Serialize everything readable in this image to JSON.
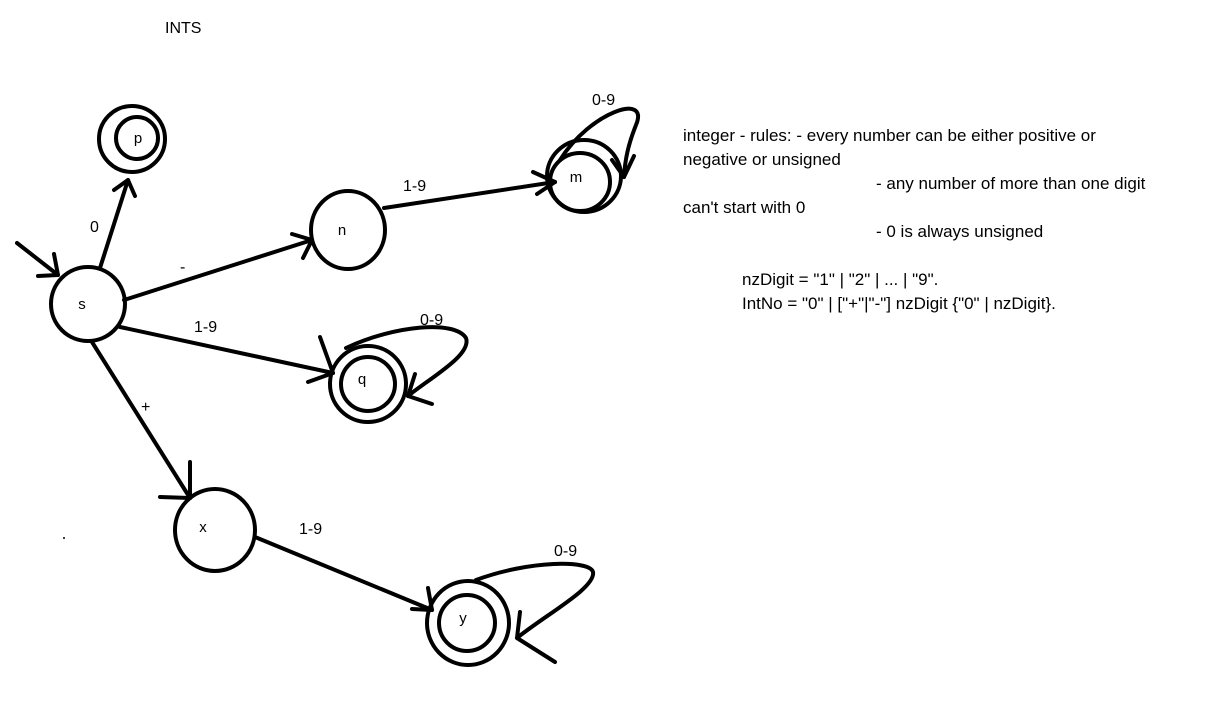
{
  "title": "INTS",
  "states": {
    "s": "s",
    "p": "p",
    "n": "n",
    "m": "m",
    "q": "q",
    "x": "x",
    "y": "y"
  },
  "transitions": {
    "s_p": "0",
    "s_n": "-",
    "n_m": "1-9",
    "m_loop": "0-9",
    "s_q": "1-9",
    "q_loop": "0-9",
    "s_x": "+",
    "x_y": "1-9",
    "y_loop": "0-9"
  },
  "notes": {
    "line1": "integer - rules: - every number can be either positive or",
    "line2": "negative or unsigned",
    "line3": "- any number of more than one digit",
    "line4": "can't start with 0",
    "line5": "- 0 is always unsigned",
    "line6": "nzDigit = \"1\" | \"2\" | ... | \"9\".",
    "line7": "IntNo = \"0\" | [\"+\"|\"-\"] nzDigit {\"0\" | nzDigit}."
  }
}
